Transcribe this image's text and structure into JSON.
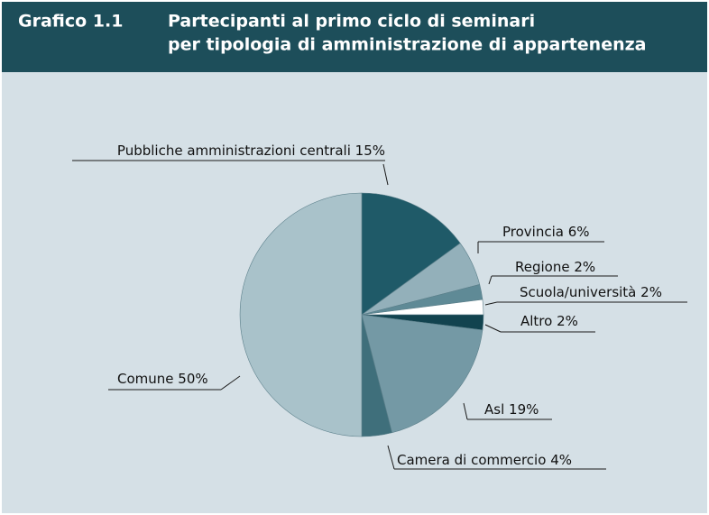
{
  "chart_data": {
    "type": "pie",
    "figure_label": "Grafico 1.1",
    "title": [
      "Partecipanti al primo ciclo di seminari",
      "per tipologia di amministrazione di appartenenza"
    ],
    "categories": [
      "Pubbliche amministrazioni centrali",
      "Provincia",
      "Regione",
      "Scuola/università",
      "Altro",
      "Asl",
      "Camera di commercio",
      "Comune"
    ],
    "values": [
      15,
      6,
      2,
      2,
      2,
      19,
      4,
      50
    ],
    "value_labels": [
      "15%",
      "6%",
      "2%",
      "2%",
      "2%",
      "19%",
      "4%",
      "50%"
    ],
    "colors": [
      "#1f5a68",
      "#93b0ba",
      "#5f8a96",
      "#ffffff",
      "#12434f",
      "#7499a5",
      "#3f6f7b",
      "#a9c2ca"
    ]
  }
}
